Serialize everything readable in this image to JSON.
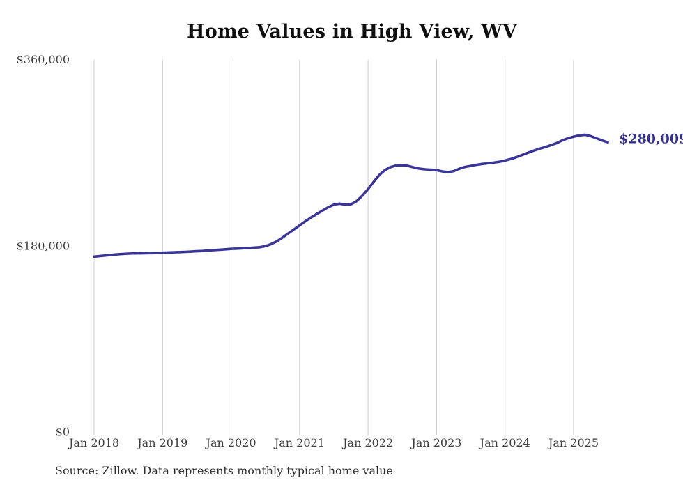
{
  "title": "Home Values in High View, WV",
  "source_note": "Source: Zillow. Data represents monthly typical home value",
  "colors": {
    "line": "#3b3597",
    "end_label": "#33308e",
    "grid": "#cccccc",
    "tick_text": "#3d3d3d",
    "title_text": "#0f0f0f",
    "source_text": "#2e2e2e",
    "background": "#ffffff"
  },
  "chart_data": {
    "type": "line",
    "title": "Home Values in High View, WV",
    "x_tick_labels": [
      "Jan 2018",
      "Jan 2019",
      "Jan 2020",
      "Jan 2021",
      "Jan 2022",
      "Jan 2023",
      "Jan 2024",
      "Jan 2025"
    ],
    "y_ticks": [
      {
        "label": "$0",
        "value": 0
      },
      {
        "label": "$180,000",
        "value": 180000
      },
      {
        "label": "$360,000",
        "value": 360000
      }
    ],
    "ylim": [
      0,
      360000
    ],
    "grid": "vertical-only",
    "legend": "none",
    "end_label": "$280,009",
    "end_value": 280009,
    "series": [
      {
        "name": "Typical home value",
        "start_month": "Jan 2018",
        "end_month": "Jul 2025",
        "frequency": "monthly",
        "values": [
          169500,
          170000,
          170600,
          171200,
          171700,
          172100,
          172400,
          172600,
          172700,
          172800,
          172900,
          173000,
          173300,
          173500,
          173700,
          173900,
          174100,
          174400,
          174700,
          175000,
          175400,
          175800,
          176200,
          176600,
          177000,
          177300,
          177600,
          177900,
          178200,
          178600,
          179600,
          181600,
          184300,
          187900,
          191900,
          195800,
          199800,
          203700,
          207300,
          210700,
          214000,
          217200,
          219800,
          220700,
          219800,
          220100,
          223200,
          228500,
          234800,
          242000,
          248600,
          253300,
          256200,
          257700,
          257800,
          257200,
          255800,
          254500,
          253900,
          253500,
          253100,
          251900,
          251200,
          252200,
          254500,
          256300,
          257200,
          258300,
          259100,
          259800,
          260400,
          261200,
          262400,
          263800,
          265700,
          267800,
          269900,
          271900,
          273800,
          275300,
          277200,
          279200,
          281800,
          283900,
          285400,
          286700,
          287300,
          286000,
          283900,
          281800,
          280009
        ]
      }
    ]
  }
}
